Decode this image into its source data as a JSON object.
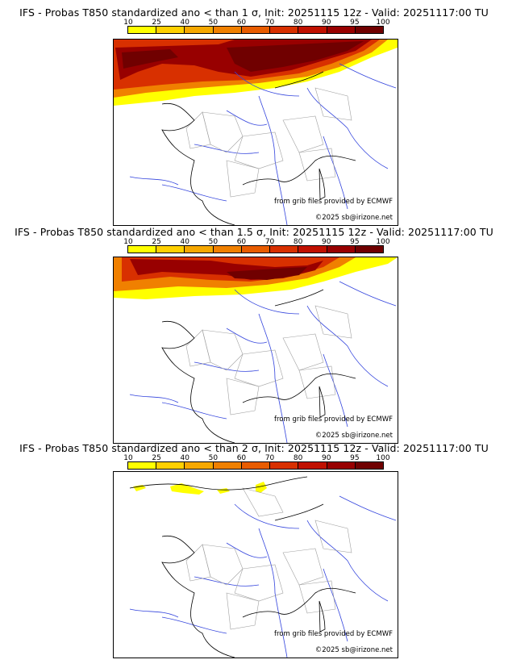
{
  "colors": {
    "scale": [
      "#ffff00",
      "#ffd000",
      "#f6a800",
      "#f08000",
      "#e85c00",
      "#d83000",
      "#c01000",
      "#980000",
      "#700000"
    ],
    "coast": "#000000",
    "rivers": "#3344dd",
    "borders": "#a0a0a0"
  },
  "legend": {
    "ticks": [
      "10",
      "25",
      "40",
      "50",
      "60",
      "70",
      "80",
      "90",
      "95",
      "100"
    ]
  },
  "credits": {
    "source": "from grib files provided by ECMWF",
    "copyright": "©2025 sb@irizone.net"
  },
  "panels": [
    {
      "title": "IFS - Probas T850  standardized ano < than 1 σ, Init: 20251115 12z - Valid: 20251117:00 TU"
    },
    {
      "title": "IFS - Probas T850  standardized ano < than 1.5 σ, Init: 20251115 12z - Valid: 20251117:00 TU"
    },
    {
      "title": "IFS - Probas T850  standardized ano < than 2 σ, Init: 20251115 12z - Valid: 20251117:00 TU"
    }
  ]
}
